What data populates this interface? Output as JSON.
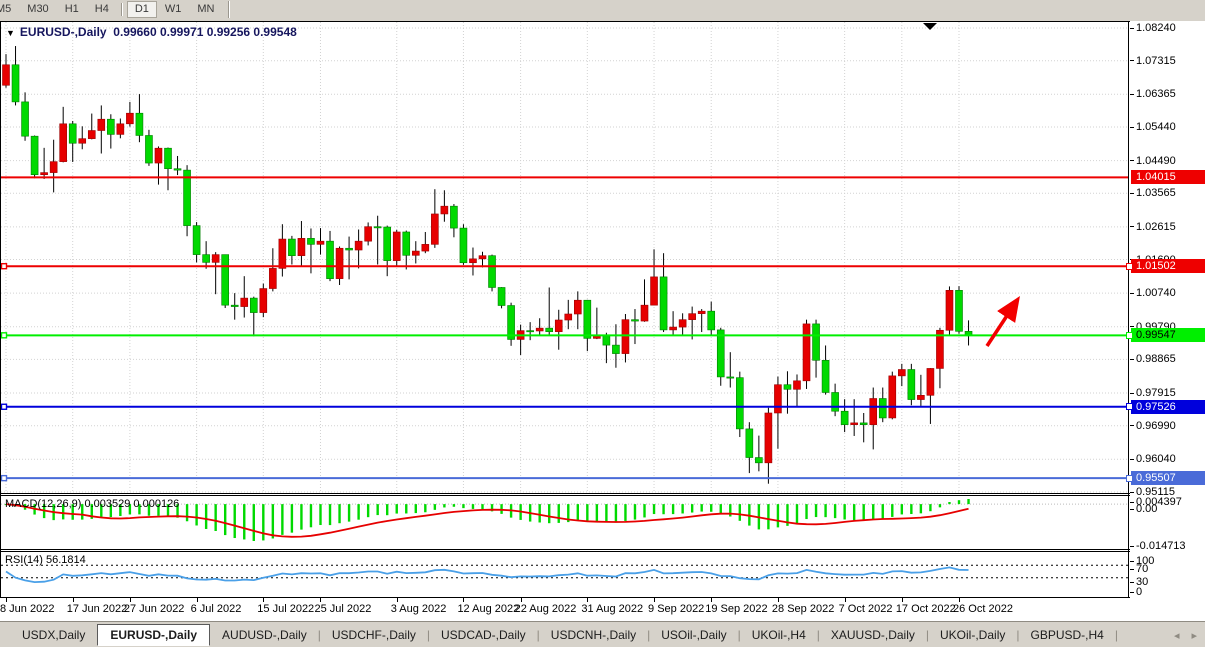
{
  "toolbar": {
    "items": [
      {
        "type": "btn",
        "label": "M5",
        "clipped": true
      },
      {
        "type": "btn",
        "label": "M30"
      },
      {
        "type": "btn",
        "label": "H1"
      },
      {
        "type": "btn",
        "label": "H4"
      },
      {
        "type": "sep"
      },
      {
        "type": "btn",
        "label": "D1",
        "active": true
      },
      {
        "type": "btn",
        "label": "W1"
      },
      {
        "type": "btn",
        "label": "MN"
      },
      {
        "type": "sep2"
      }
    ]
  },
  "header": {
    "menu_icon": "▼",
    "symbol": "EURUSD-,Daily",
    "ohlc_display": "0.99660 0.99971 0.99256 0.99548"
  },
  "chart_data": {
    "type": "candlestick",
    "symbol": "EURUSD-,Daily",
    "bull_color": "#e60000",
    "bear_color": "#00d900",
    "price_range": {
      "top": 1.0824,
      "bottom": 0.95115
    },
    "price_axis_ticks": [
      "1.08240",
      "1.07315",
      "1.06365",
      "1.05440",
      "1.04490",
      "1.03565",
      "1.02615",
      "1.01690",
      "1.00740",
      "0.99790",
      "0.98865",
      "0.97915",
      "0.96990",
      "0.96040",
      "0.95115"
    ],
    "gridline_dates": {
      "labels": [
        "8 Jun 2022",
        "17 Jun 2022",
        "27 Jun 2022",
        "6 Jul 2022",
        "15 Jul 2022",
        "25 Jul 2022",
        "3 Aug 2022",
        "12 Aug 2022",
        "22 Aug 2022",
        "31 Aug 2022",
        "9 Sep 2022",
        "19 Sep 2022",
        "28 Sep 2022",
        "7 Oct 2022",
        "17 Oct 2022",
        "26 Oct 2022"
      ],
      "bar_indices": [
        0,
        7,
        13,
        20,
        27,
        33,
        41,
        48,
        54,
        61,
        68,
        74,
        81,
        88,
        94,
        100
      ]
    },
    "hlines": [
      {
        "price": 1.04015,
        "label": "1.04015",
        "color": "#ee0000",
        "text_color": "#ffffff",
        "handle": false
      },
      {
        "price": 1.01502,
        "label": "1.01502",
        "color": "#ee0000",
        "text_color": "#ffffff",
        "handle": true
      },
      {
        "price": 0.99547,
        "label": "0.99547",
        "color": "#00ef00",
        "text_color": "#000000",
        "handle": true
      },
      {
        "price": 0.97526,
        "label": "0.97526",
        "color": "#0000dc",
        "text_color": "#ffffff",
        "handle": true
      },
      {
        "price": 0.95507,
        "label": "0.95507",
        "color": "#4a6bd8",
        "text_color": "#ffffff",
        "handle": true
      }
    ],
    "arrow": {
      "from": [
        987,
        346
      ],
      "to": [
        1016,
        302
      ],
      "color": "#f20000"
    },
    "candles_ohlc": [
      [
        1.0662,
        1.075,
        1.0655,
        1.072
      ],
      [
        1.072,
        1.0773,
        1.0605,
        1.0615
      ],
      [
        1.0615,
        1.0642,
        1.0505,
        1.0518
      ],
      [
        1.0518,
        1.052,
        1.0399,
        1.0409
      ],
      [
        1.0409,
        1.0485,
        1.0397,
        1.0415
      ],
      [
        1.0415,
        1.0508,
        1.0359,
        1.0446
      ],
      [
        1.0446,
        1.0601,
        1.0444,
        1.0553
      ],
      [
        1.0553,
        1.0561,
        1.0445,
        1.0498
      ],
      [
        1.0498,
        1.0546,
        1.0481,
        1.0511
      ],
      [
        1.0511,
        1.0582,
        1.0509,
        1.0534
      ],
      [
        1.0534,
        1.0605,
        1.0469,
        1.0566
      ],
      [
        1.0566,
        1.058,
        1.0483,
        1.0523
      ],
      [
        1.0523,
        1.0568,
        1.0512,
        1.0553
      ],
      [
        1.0553,
        1.0615,
        1.0545,
        1.0583
      ],
      [
        1.0583,
        1.0637,
        1.0501,
        1.052
      ],
      [
        1.052,
        1.0536,
        1.0434,
        1.0442
      ],
      [
        1.0442,
        1.0489,
        1.0381,
        1.0484
      ],
      [
        1.0484,
        1.0486,
        1.0365,
        1.0426
      ],
      [
        1.0426,
        1.0462,
        1.0408,
        1.0422
      ],
      [
        1.0422,
        1.0436,
        1.0235,
        1.0265
      ],
      [
        1.0265,
        1.0275,
        1.0161,
        1.0183
      ],
      [
        1.0183,
        1.0221,
        1.0143,
        1.0161
      ],
      [
        1.0161,
        1.019,
        1.0071,
        1.0183
      ],
      [
        1.0183,
        1.0183,
        1.0032,
        1.004
      ],
      [
        1.004,
        1.0074,
        0.9999,
        1.0036
      ],
      [
        1.0036,
        1.0122,
        1.0005,
        1.006
      ],
      [
        1.006,
        1.0064,
        0.9952,
        1.0019
      ],
      [
        1.0019,
        1.0101,
        1.0006,
        1.0087
      ],
      [
        1.0087,
        1.0201,
        1.0079,
        1.0144
      ],
      [
        1.0144,
        1.0269,
        1.0121,
        1.0227
      ],
      [
        1.0227,
        1.0236,
        1.0155,
        1.018
      ],
      [
        1.018,
        1.0278,
        1.0152,
        1.0229
      ],
      [
        1.0229,
        1.0257,
        1.013,
        1.0212
      ],
      [
        1.0212,
        1.0258,
        1.0183,
        1.0221
      ],
      [
        1.0221,
        1.025,
        1.0108,
        1.0115
      ],
      [
        1.0115,
        1.0206,
        1.0097,
        1.0201
      ],
      [
        1.0201,
        1.0234,
        1.0113,
        1.0196
      ],
      [
        1.0196,
        1.0254,
        1.0144,
        1.0221
      ],
      [
        1.0221,
        1.0274,
        1.0209,
        1.0262
      ],
      [
        1.0262,
        1.0293,
        1.0155,
        1.0261
      ],
      [
        1.0261,
        1.0265,
        1.0122,
        1.0166
      ],
      [
        1.0166,
        1.0253,
        1.0152,
        1.0247
      ],
      [
        1.0247,
        1.0251,
        1.0141,
        1.0181
      ],
      [
        1.0181,
        1.0221,
        1.0158,
        1.0193
      ],
      [
        1.0193,
        1.0247,
        1.0187,
        1.0212
      ],
      [
        1.0212,
        1.0368,
        1.0202,
        1.0298
      ],
      [
        1.0298,
        1.0365,
        1.0276,
        1.032
      ],
      [
        1.032,
        1.0326,
        1.0232,
        1.0258
      ],
      [
        1.0258,
        1.0269,
        1.0154,
        1.016
      ],
      [
        1.016,
        1.0203,
        1.0124,
        1.0171
      ],
      [
        1.0171,
        1.0191,
        1.0147,
        1.018
      ],
      [
        1.018,
        1.0183,
        1.0079,
        1.009
      ],
      [
        1.009,
        1.0091,
        1.0031,
        1.0039
      ],
      [
        1.0039,
        1.0047,
        0.9925,
        0.9943
      ],
      [
        0.9943,
        0.9985,
        0.9899,
        0.9968
      ],
      [
        0.9968,
        0.9992,
        0.9941,
        0.9967
      ],
      [
        0.9967,
        1.0003,
        0.9954,
        0.9975
      ],
      [
        0.9975,
        1.009,
        0.9957,
        0.9965
      ],
      [
        0.9965,
        1.0027,
        0.9914,
        0.9998
      ],
      [
        0.9998,
        1.0055,
        0.9972,
        1.0015
      ],
      [
        1.0015,
        1.0079,
        0.9972,
        1.0054
      ],
      [
        1.0054,
        1.0055,
        0.991,
        0.9946
      ],
      [
        0.9946,
        1.0033,
        0.9944,
        0.9953
      ],
      [
        0.9953,
        0.9962,
        0.9876,
        0.9927
      ],
      [
        0.9927,
        0.9986,
        0.9863,
        0.9903
      ],
      [
        0.9903,
        1.0015,
        0.9878,
        0.9999
      ],
      [
        0.9999,
        1.0029,
        0.993,
        0.9995
      ],
      [
        0.9995,
        1.0113,
        0.9993,
        1.004
      ],
      [
        1.004,
        1.0198,
        1.004,
        1.012
      ],
      [
        1.012,
        1.0187,
        0.9964,
        0.997
      ],
      [
        0.997,
        1.0023,
        0.9955,
        0.9978
      ],
      [
        0.9978,
        1.0017,
        0.9954,
        0.9999
      ],
      [
        0.9999,
        1.0036,
        0.9943,
        1.0016
      ],
      [
        1.0016,
        1.0029,
        0.9964,
        1.0023
      ],
      [
        1.0023,
        1.005,
        0.9954,
        0.997
      ],
      [
        0.997,
        0.9976,
        0.9812,
        0.9837
      ],
      [
        0.9837,
        0.9907,
        0.9807,
        0.9835
      ],
      [
        0.9835,
        0.9852,
        0.9667,
        0.969
      ],
      [
        0.969,
        0.9709,
        0.9565,
        0.9609
      ],
      [
        0.9609,
        0.9671,
        0.957,
        0.9594
      ],
      [
        0.9594,
        0.975,
        0.9535,
        0.9735
      ],
      [
        0.9735,
        0.9838,
        0.9634,
        0.9815
      ],
      [
        0.9815,
        0.9853,
        0.9733,
        0.9802
      ],
      [
        0.9802,
        0.9844,
        0.9751,
        0.9826
      ],
      [
        0.9826,
        0.9999,
        0.9803,
        0.9987
      ],
      [
        0.9987,
        0.9999,
        0.9835,
        0.9884
      ],
      [
        0.9884,
        0.9926,
        0.9787,
        0.9793
      ],
      [
        0.9793,
        0.9818,
        0.9726,
        0.974
      ],
      [
        0.974,
        0.9774,
        0.9681,
        0.9702
      ],
      [
        0.9702,
        0.9774,
        0.967,
        0.9707
      ],
      [
        0.9707,
        0.9735,
        0.9652,
        0.9702
      ],
      [
        0.9702,
        0.9807,
        0.9632,
        0.9776
      ],
      [
        0.9776,
        0.9807,
        0.9709,
        0.9721
      ],
      [
        0.9721,
        0.9852,
        0.9717,
        0.984
      ],
      [
        0.984,
        0.9874,
        0.9811,
        0.9858
      ],
      [
        0.9858,
        0.9874,
        0.9757,
        0.9773
      ],
      [
        0.9773,
        0.9843,
        0.9755,
        0.9785
      ],
      [
        0.9785,
        0.9862,
        0.9704,
        0.9861
      ],
      [
        0.9861,
        0.9976,
        0.9805,
        0.9969
      ],
      [
        0.9969,
        1.0093,
        0.9953,
        1.0082
      ],
      [
        1.0082,
        1.0094,
        0.9959,
        0.9966
      ],
      [
        0.9966,
        0.9997,
        0.9926,
        0.9955
      ]
    ]
  },
  "macd": {
    "name": "MACD(12,26,9)",
    "values": "0.003529 0.000126",
    "axis_labels": [
      "0.004397",
      "0.00",
      "-0.014713"
    ],
    "histogram_color": "#00d900",
    "signal_color": "#e60000"
  },
  "rsi": {
    "name": "RSI(14)",
    "value": "56.1814",
    "axis_labels": [
      "100",
      "70",
      "30",
      "0"
    ],
    "levels": [
      70,
      30
    ],
    "line_color": "#4aa0e8"
  },
  "tabs": {
    "items": [
      {
        "label": "USDX,Daily"
      },
      {
        "label": "EURUSD-,Daily",
        "active": true
      },
      {
        "label": "AUDUSD-,Daily"
      },
      {
        "label": "USDCHF-,Daily"
      },
      {
        "label": "USDCAD-,Daily"
      },
      {
        "label": "USDCNH-,Daily"
      },
      {
        "label": "USOil-,Daily"
      },
      {
        "label": "UKOil-,H4"
      },
      {
        "label": "XAUUSD-,Daily"
      },
      {
        "label": "UKOil-,Daily"
      },
      {
        "label": "GBPUSD-,H4"
      }
    ],
    "scroll_left": "◂",
    "scroll_right": "▸"
  }
}
